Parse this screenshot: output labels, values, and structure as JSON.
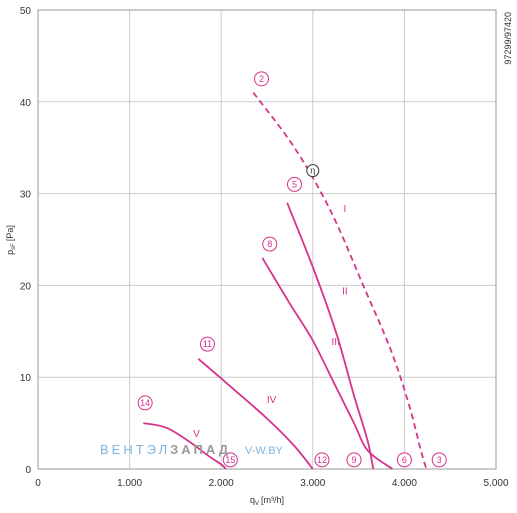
{
  "chart_data": {
    "type": "line",
    "xlabel_base": "q",
    "xlabel_sub": "V",
    "xlabel_unit": "[m³/h]",
    "ylabel_base": "p",
    "ylabel_sub": "sF",
    "ylabel_unit": "[Pa]",
    "xlim": [
      0,
      5000
    ],
    "ylim": [
      0,
      50
    ],
    "x_ticks": [
      {
        "value": 0,
        "label": "0"
      },
      {
        "value": 1000,
        "label": "1.000"
      },
      {
        "value": 2000,
        "label": "2.000"
      },
      {
        "value": 3000,
        "label": "3.000"
      },
      {
        "value": 4000,
        "label": "4.000"
      },
      {
        "value": 5000,
        "label": "5.000"
      }
    ],
    "y_ticks": [
      {
        "value": 0,
        "label": "0"
      },
      {
        "value": 10,
        "label": "10"
      },
      {
        "value": 20,
        "label": "20"
      },
      {
        "value": 30,
        "label": "30"
      },
      {
        "value": 40,
        "label": "40"
      },
      {
        "value": 50,
        "label": "50"
      }
    ],
    "grid": true,
    "figure_id": "97299/97420",
    "curve_color": "#d6338a",
    "series": [
      {
        "key": "c2",
        "dashed": true,
        "points": [
          [
            2350,
            41
          ],
          [
            2800,
            35
          ],
          [
            3200,
            28
          ],
          [
            3550,
            20
          ],
          [
            3850,
            13
          ],
          [
            4050,
            7
          ],
          [
            4180,
            2
          ],
          [
            4240,
            0
          ]
        ]
      },
      {
        "key": "c5",
        "dashed": false,
        "points": [
          [
            2720,
            29
          ],
          [
            3000,
            22
          ],
          [
            3250,
            15
          ],
          [
            3450,
            8
          ],
          [
            3600,
            3
          ],
          [
            3660,
            0
          ]
        ]
      },
      {
        "key": "c8",
        "dashed": false,
        "points": [
          [
            2450,
            23
          ],
          [
            2750,
            18
          ],
          [
            3000,
            14
          ],
          [
            3250,
            9
          ],
          [
            3450,
            5
          ],
          [
            3600,
            2
          ],
          [
            3870,
            0
          ]
        ]
      },
      {
        "key": "c11",
        "dashed": false,
        "points": [
          [
            1750,
            12
          ],
          [
            2100,
            9
          ],
          [
            2500,
            5.5
          ],
          [
            2800,
            2.5
          ],
          [
            3000,
            0
          ]
        ]
      },
      {
        "key": "c14",
        "dashed": false,
        "points": [
          [
            1150,
            5
          ],
          [
            1400,
            4.5
          ],
          [
            1650,
            3
          ],
          [
            1850,
            1.5
          ],
          [
            2000,
            0.5
          ],
          [
            2050,
            0
          ]
        ]
      }
    ],
    "curve_labels": [
      {
        "text": "I",
        "x": 3350,
        "y": 28
      },
      {
        "text": "II",
        "x": 3350,
        "y": 19
      },
      {
        "text": "III",
        "x": 3250,
        "y": 13.5
      },
      {
        "text": "IV",
        "x": 2550,
        "y": 7.2
      },
      {
        "text": "V",
        "x": 1730,
        "y": 3.5
      }
    ],
    "markers": [
      {
        "text": "2",
        "x": 2440,
        "y": 42.5
      },
      {
        "text": "5",
        "x": 2800,
        "y": 31
      },
      {
        "text": "8",
        "x": 2530,
        "y": 24.5
      },
      {
        "text": "11",
        "x": 1850,
        "y": 13.6
      },
      {
        "text": "14",
        "x": 1170,
        "y": 7.2
      },
      {
        "text": "15",
        "x": 2100,
        "y": 1.0
      },
      {
        "text": "12",
        "x": 3100,
        "y": 1.0
      },
      {
        "text": "9",
        "x": 3450,
        "y": 1.0
      },
      {
        "text": "6",
        "x": 4000,
        "y": 1.0
      },
      {
        "text": "3",
        "x": 4380,
        "y": 1.0
      }
    ],
    "op_marker": {
      "text": "η",
      "x": 3000,
      "y": 32.5
    }
  },
  "watermark": {
    "part1": "ВЕНТЭЛ",
    "part2": "ЗАПАД",
    "part3": "V-W.BY",
    "color1": "#7fb6e0",
    "color2": "#9a9a9a",
    "color3": "#7fb6e0"
  }
}
